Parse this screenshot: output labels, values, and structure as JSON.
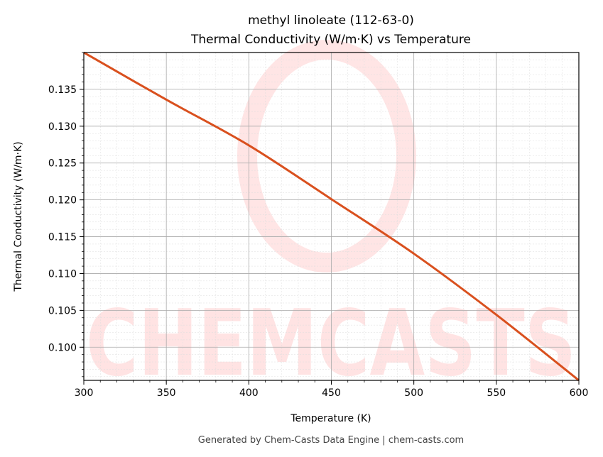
{
  "chart_data": {
    "type": "line",
    "title": "methyl linoleate (112-63-0)",
    "subtitle": "Thermal Conductivity (W/m·K) vs Temperature",
    "xlabel": "Temperature (K)",
    "ylabel": "Thermal Conductivity (W/m·K)",
    "xlim": [
      300,
      600
    ],
    "ylim": [
      0.0955,
      0.14
    ],
    "xticks": [
      300,
      350,
      400,
      450,
      500,
      550,
      600
    ],
    "yticks": [
      0.1,
      0.105,
      0.11,
      0.115,
      0.12,
      0.125,
      0.13,
      0.135
    ],
    "grid": true,
    "series": [
      {
        "name": "Thermal Conductivity",
        "color": "#d9501e",
        "x": [
          300,
          350,
          400,
          450,
          500,
          550,
          600
        ],
        "y": [
          0.14,
          0.1336,
          0.1274,
          0.1201,
          0.1127,
          0.1044,
          0.0955
        ]
      }
    ]
  },
  "watermark": "CHEMCASTS",
  "footer": "Generated by Chem-Casts Data Engine | chem-casts.com"
}
